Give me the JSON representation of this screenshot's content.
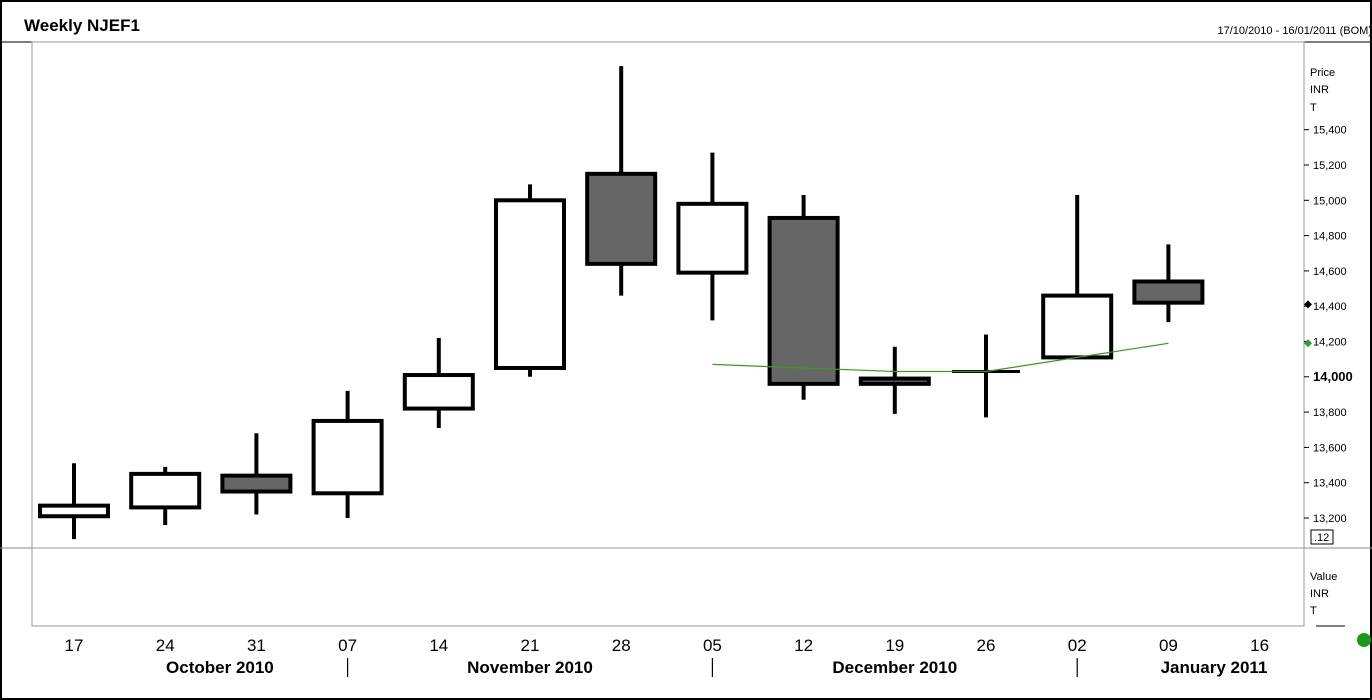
{
  "header": {
    "title": "Weekly NJEF1",
    "date_range": "17/10/2010 - 16/01/2011 (BOM)"
  },
  "price_panel": {
    "axis_title": [
      "Price",
      "INR",
      "T"
    ],
    "last_price_tag": ".12",
    "marker_black_color": "#000000",
    "marker_green_color": "#2e9e2e"
  },
  "value_panel": {
    "axis_title": [
      "Value",
      "INR",
      "T"
    ],
    "status_dot_color": "#1a9a1a"
  },
  "colors": {
    "bull_fill": "#ffffff",
    "bear_fill": "#666666",
    "candle_stroke": "#000000",
    "moving_average": "#3a9a1a"
  },
  "chart_data": {
    "type": "candlestick",
    "title": "Weekly NJEF1",
    "subtitle": "17/10/2010 - 16/01/2011 (BOM)",
    "ylabel": "Price INR T",
    "ylim": [
      13070,
      15500
    ],
    "y_ticks": [
      13200,
      13400,
      13600,
      13800,
      14000,
      14200,
      14400,
      14600,
      14800,
      15000,
      15200,
      15400
    ],
    "y_tick_labels": [
      "13,200",
      "13,400",
      "13,600",
      "13,800",
      "14,000",
      "14,200",
      "14,400",
      "14,600",
      "14,800",
      "15,000",
      "15,200",
      "15,400"
    ],
    "y_tick_bold": "14,000",
    "x_tick_labels": [
      "17",
      "24",
      "31",
      "07",
      "14",
      "21",
      "28",
      "05",
      "12",
      "19",
      "26",
      "02",
      "09",
      "16"
    ],
    "months": [
      {
        "label": "October 2010",
        "center_week": 1.6,
        "sep_after_week": 3
      },
      {
        "label": "November 2010",
        "center_week": 5.0,
        "sep_after_week": 7
      },
      {
        "label": "December 2010",
        "center_week": 9.0,
        "sep_after_week": 11
      },
      {
        "label": "January 2011",
        "center_week": 12.5
      }
    ],
    "candles": [
      {
        "week": "17",
        "open": 13210,
        "high": 13510,
        "low": 13080,
        "close": 13270
      },
      {
        "week": "24",
        "open": 13260,
        "high": 13490,
        "low": 13160,
        "close": 13450
      },
      {
        "week": "31",
        "open": 13440,
        "high": 13680,
        "low": 13220,
        "close": 13350
      },
      {
        "week": "07",
        "open": 13340,
        "high": 13920,
        "low": 13200,
        "close": 13750
      },
      {
        "week": "14",
        "open": 13820,
        "high": 14220,
        "low": 13710,
        "close": 14010
      },
      {
        "week": "21",
        "open": 14050,
        "high": 15090,
        "low": 14000,
        "close": 15000
      },
      {
        "week": "28",
        "open": 15150,
        "high": 15760,
        "low": 14460,
        "close": 14640
      },
      {
        "week": "05",
        "open": 14590,
        "high": 15270,
        "low": 14320,
        "close": 14980
      },
      {
        "week": "12",
        "open": 14900,
        "high": 15030,
        "low": 13870,
        "close": 13960
      },
      {
        "week": "19",
        "open": 13990,
        "high": 14170,
        "low": 13790,
        "close": 13960
      },
      {
        "week": "26",
        "open": 14030,
        "high": 14240,
        "low": 13770,
        "close": 14030
      },
      {
        "week": "02",
        "open": 14110,
        "high": 15030,
        "low": 14110,
        "close": 14460
      },
      {
        "week": "09",
        "open": 14540,
        "high": 14750,
        "low": 14310,
        "close": 14420
      }
    ],
    "moving_average": {
      "points": [
        {
          "week_index": 7,
          "value": 14070
        },
        {
          "week_index": 8,
          "value": 14050
        },
        {
          "week_index": 9,
          "value": 14030
        },
        {
          "week_index": 10,
          "value": 14030
        },
        {
          "week_index": 11,
          "value": 14110
        },
        {
          "week_index": 12,
          "value": 14190
        }
      ]
    },
    "markers": [
      {
        "color": "black",
        "value": 14410
      },
      {
        "color": "green",
        "value": 14190
      }
    ],
    "grid": false
  }
}
